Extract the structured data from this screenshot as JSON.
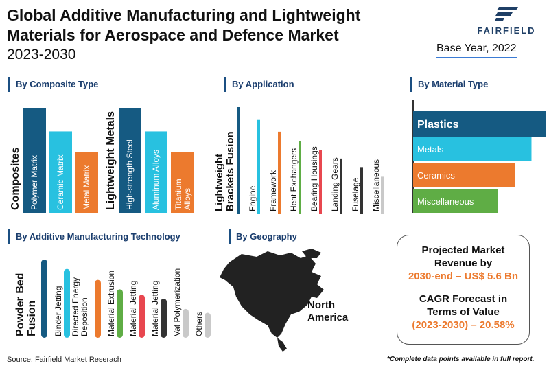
{
  "header": {
    "title_line1": "Global Additive Manufacturing and Lightweight",
    "title_line2": "Materials for Aerospace and Defence Market",
    "subtitle": "2023-2030",
    "brand": "FAIRFIELD",
    "base_year": "Base Year, 2022"
  },
  "colors": {
    "navy": "#155a82",
    "cyan": "#28c1e0",
    "orange": "#ec7a2e",
    "green": "#5fad45",
    "red": "#e8474f",
    "dark": "#333333",
    "grey": "#c9c9c9"
  },
  "chart_data": [
    {
      "type": "bar",
      "title": "By Composite Type",
      "groups": [
        {
          "label": "Composites",
          "categories": [
            "Polymer Matrix",
            "Ceramic Matrix",
            "Metal Matrix"
          ],
          "values": [
            100,
            78,
            58
          ]
        },
        {
          "label": "Lightweight Metals",
          "categories": [
            "High-strength Steel",
            "Aluminum Alloys",
            "Titanium Alloys"
          ],
          "values": [
            100,
            78,
            58
          ]
        }
      ]
    },
    {
      "type": "bar",
      "title": "By Application",
      "categories": [
        "Lightweight Brackets Fusion",
        "Engine",
        "Framework",
        "Heat Exchangers",
        "Bearing Housings",
        "Landing Gears",
        "Fuselage",
        "Miscellaneous"
      ],
      "values": [
        100,
        88,
        77,
        68,
        60,
        52,
        44,
        35
      ]
    },
    {
      "type": "bar",
      "title": "By Material Type",
      "categories": [
        "Plastics",
        "Metals",
        "Ceramics",
        "Miscellaneous"
      ],
      "values": [
        100,
        88,
        76,
        63
      ]
    },
    {
      "type": "bar",
      "title": "By Additive Manufacturing Technology",
      "categories": [
        "Powder Bed Fusion",
        "Binder Jetting",
        "Directed Energy Deposition",
        "Material Extrusion",
        "Material Jetting",
        "Material Jetting",
        "Vat Polymerization",
        "Others"
      ],
      "values": [
        100,
        88,
        74,
        62,
        55,
        50,
        37,
        32
      ]
    }
  ],
  "geography": {
    "title": "By Geography",
    "region": "North America"
  },
  "projection": {
    "line1": "Projected Market",
    "line2": "Revenue by",
    "line3": "2030-end – US$ 5.6 Bn",
    "line4": "CAGR Forecast in",
    "line5": "Terms of Value",
    "line6": "(2023-2030) – 20.58%"
  },
  "footer": {
    "source": "Source: Fairfield Market Reserach",
    "note": "*Complete data points available in full report."
  }
}
